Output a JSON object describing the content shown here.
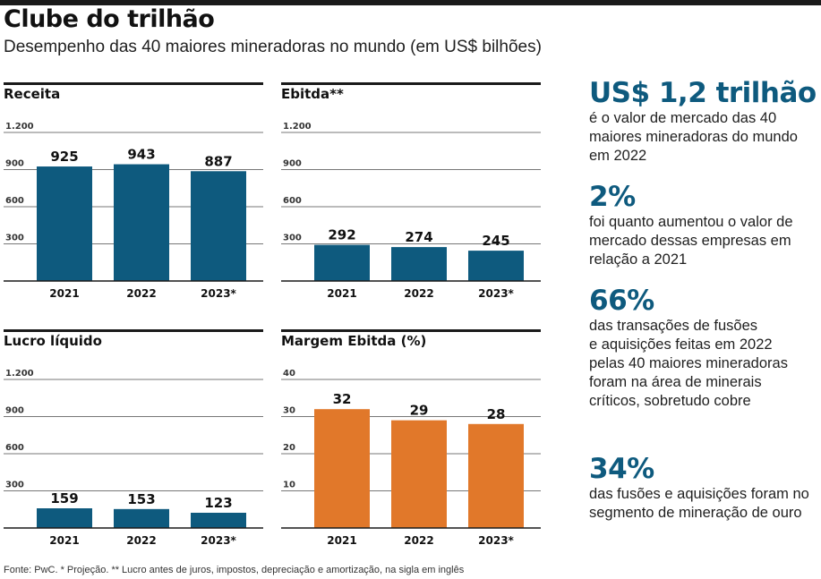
{
  "header": {
    "title": "Clube do trilhão",
    "subtitle": "Desempenho das 40 maiores mineradoras no mundo (em US$ bilhões)"
  },
  "colors": {
    "blue": "#0e5a7e",
    "orange": "#e1782a",
    "text": "#1a1a1a"
  },
  "chart_data": [
    {
      "type": "bar",
      "title": "Receita",
      "categories": [
        "2021",
        "2022",
        "2023*"
      ],
      "values": [
        925,
        943,
        887
      ],
      "value_labels": [
        "925",
        "943",
        "887"
      ],
      "yticks": [
        300,
        600,
        900,
        1200
      ],
      "ytick_labels": [
        "300",
        "600",
        "900",
        "1.200"
      ],
      "ylim": [
        0,
        1200
      ],
      "color": "#0e5a7e",
      "grid": true
    },
    {
      "type": "bar",
      "title": "Ebitda**",
      "categories": [
        "2021",
        "2022",
        "2023*"
      ],
      "values": [
        292,
        274,
        245
      ],
      "value_labels": [
        "292",
        "274",
        "245"
      ],
      "yticks": [
        300,
        600,
        900,
        1200
      ],
      "ytick_labels": [
        "300",
        "600",
        "900",
        "1.200"
      ],
      "ylim": [
        0,
        1200
      ],
      "color": "#0e5a7e",
      "grid": true
    },
    {
      "type": "bar",
      "title": "Lucro líquido",
      "categories": [
        "2021",
        "2022",
        "2023*"
      ],
      "values": [
        159,
        153,
        123
      ],
      "value_labels": [
        "159",
        "153",
        "123"
      ],
      "yticks": [
        300,
        600,
        900,
        1200
      ],
      "ytick_labels": [
        "300",
        "600",
        "900",
        "1.200"
      ],
      "ylim": [
        0,
        1200
      ],
      "color": "#0e5a7e",
      "grid": true
    },
    {
      "type": "bar",
      "title": "Margem Ebitda (%)",
      "categories": [
        "2021",
        "2022",
        "2023*"
      ],
      "values": [
        32,
        29,
        28
      ],
      "value_labels": [
        "32",
        "29",
        "28"
      ],
      "yticks": [
        10,
        20,
        30,
        40
      ],
      "ytick_labels": [
        "10",
        "20",
        "30",
        "40"
      ],
      "ylim": [
        0,
        40
      ],
      "color": "#e1782a",
      "grid": true
    }
  ],
  "facts": [
    {
      "big": "US$ 1,2 trilhão",
      "text": "é o valor de mercado das 40\nmaiores mineradoras do mundo\nem 2022"
    },
    {
      "big": "2%",
      "text": "foi quanto aumentou o valor de\nmercado dessas empresas em\nrelação a 2021"
    },
    {
      "big": "66%",
      "text": "das transações de fusões\ne aquisições feitas em 2022\npelas 40 maiores mineradoras\nforam na área de minerais\ncríticos, sobretudo cobre"
    },
    {
      "big": "34%",
      "text": "das fusões e aquisições foram no\nsegmento de mineração de ouro"
    }
  ],
  "source": "Fonte: PwC. * Projeção. ** Lucro antes de juros, impostos, depreciação e amortização, na sigla em inglês"
}
